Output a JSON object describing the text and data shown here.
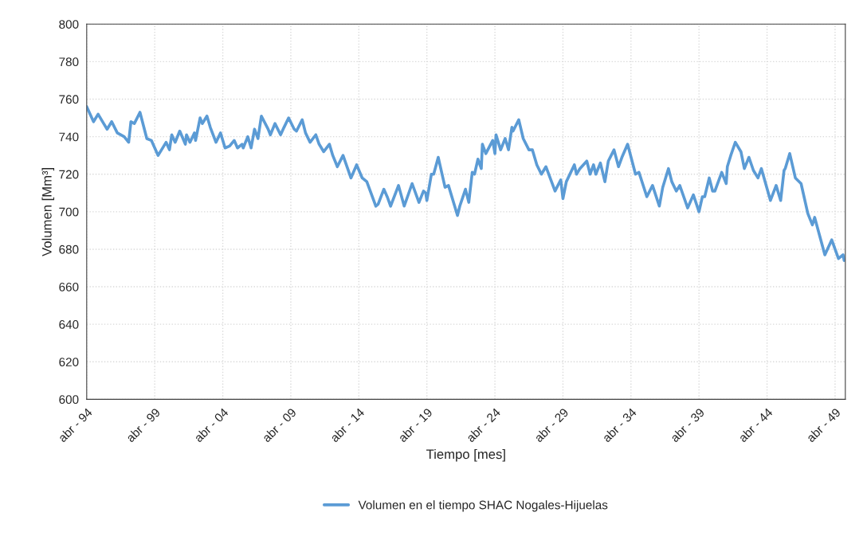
{
  "chart_data": {
    "type": "line",
    "xlabel": "Tiempo [mes]",
    "ylabel": "Volumen [Mm³]",
    "x": [
      "1994-04",
      "1994-10",
      "1995-02",
      "1995-07",
      "1995-10",
      "1996-02",
      "1996-07",
      "1997-01",
      "1997-05",
      "1997-07",
      "1997-10",
      "1998-03",
      "1998-09",
      "1999-01",
      "1999-07",
      "2000-02",
      "2000-05",
      "2000-07",
      "2000-10",
      "2001-02",
      "2001-07",
      "2001-08",
      "2001-11",
      "2002-03",
      "2002-04",
      "2002-08",
      "2002-10",
      "2003-02",
      "2003-05",
      "2003-10",
      "2004-02",
      "2004-06",
      "2004-10",
      "2005-02",
      "2005-05",
      "2005-09",
      "2005-10",
      "2006-02",
      "2006-05",
      "2006-08",
      "2006-11",
      "2007-02",
      "2007-08",
      "2007-10",
      "2008-02",
      "2008-07",
      "2008-10",
      "2009-02",
      "2009-07",
      "2009-09",
      "2010-02",
      "2010-05",
      "2010-09",
      "2011-02",
      "2011-05",
      "2011-09",
      "2012-02",
      "2012-05",
      "2012-09",
      "2013-02",
      "2013-09",
      "2014-02",
      "2014-07",
      "2014-11",
      "2015-07",
      "2015-09",
      "2016-02",
      "2016-05",
      "2016-08",
      "2017-03",
      "2017-08",
      "2018-03",
      "2018-09",
      "2019-01",
      "2019-03",
      "2019-04",
      "2019-08",
      "2019-10",
      "2020-02",
      "2020-08",
      "2020-11",
      "2021-07",
      "2021-09",
      "2022-02",
      "2022-05",
      "2022-08",
      "2022-10",
      "2023-01",
      "2023-04",
      "2023-05",
      "2023-08",
      "2024-02",
      "2024-04",
      "2024-05",
      "2024-09",
      "2025-01",
      "2025-04",
      "2025-07",
      "2025-08",
      "2026-01",
      "2026-05",
      "2026-10",
      "2027-01",
      "2027-05",
      "2027-09",
      "2028-01",
      "2028-09",
      "2029-02",
      "2029-04",
      "2029-07",
      "2030-02",
      "2030-04",
      "2030-07",
      "2031-01",
      "2031-04",
      "2031-07",
      "2031-09",
      "2032-01",
      "2032-05",
      "2032-08",
      "2033-01",
      "2033-05",
      "2033-08",
      "2034-01",
      "2034-08",
      "2034-11",
      "2035-06",
      "2035-11",
      "2036-05",
      "2036-08",
      "2037-01",
      "2037-04",
      "2037-08",
      "2037-11",
      "2038-06",
      "2038-11",
      "2039-04",
      "2039-07",
      "2039-09",
      "2040-01",
      "2040-04",
      "2040-06",
      "2040-12",
      "2041-04",
      "2041-05",
      "2041-08",
      "2041-12",
      "2042-05",
      "2042-08",
      "2042-12",
      "2043-04",
      "2043-08",
      "2043-11",
      "2044-07",
      "2044-12",
      "2045-04",
      "2045-07",
      "2045-08",
      "2045-12",
      "2046-05",
      "2046-10",
      "2047-04",
      "2047-08",
      "2047-10",
      "2048-07",
      "2049-01",
      "2049-04",
      "2049-07",
      "2049-11",
      "2049-12"
    ],
    "series": [
      {
        "name": "Volumen en el tiempo SHAC Nogales-Hijuelas",
        "color": "#5b9bd5",
        "values": [
          756,
          748,
          752,
          747,
          744,
          748,
          742,
          740,
          737,
          748,
          747,
          753,
          739,
          738,
          730,
          737,
          733,
          741,
          737,
          743,
          736,
          741,
          737,
          742,
          738,
          750,
          747,
          751,
          745,
          737,
          742,
          734,
          735,
          738,
          734,
          736,
          734,
          740,
          734,
          744,
          739,
          751,
          744,
          741,
          747,
          741,
          745,
          750,
          744,
          743,
          749,
          742,
          737,
          741,
          736,
          732,
          736,
          730,
          724,
          730,
          718,
          725,
          718,
          716,
          703,
          704,
          712,
          708,
          703,
          714,
          703,
          715,
          705,
          711,
          710,
          706,
          720,
          720,
          729,
          713,
          714,
          698,
          703,
          712,
          705,
          721,
          720,
          728,
          723,
          736,
          731,
          738,
          731,
          741,
          733,
          739,
          733,
          745,
          743,
          749,
          739,
          733,
          733,
          725,
          720,
          724,
          711,
          717,
          707,
          716,
          725,
          720,
          723,
          727,
          720,
          725,
          720,
          726,
          716,
          727,
          733,
          724,
          729,
          736,
          720,
          721,
          708,
          714,
          703,
          713,
          723,
          716,
          711,
          714,
          702,
          709,
          700,
          708,
          708,
          718,
          711,
          711,
          721,
          715,
          724,
          730,
          737,
          732,
          723,
          729,
          722,
          718,
          723,
          706,
          714,
          706,
          722,
          723,
          731,
          718,
          715,
          699,
          693,
          697,
          677,
          685,
          680,
          675,
          677,
          674
        ]
      }
    ],
    "xlim": [
      "1994-04",
      "2050-01"
    ],
    "xticks": [
      {
        "value": "1994-04",
        "label": "abr - 94"
      },
      {
        "value": "1999-04",
        "label": "abr - 99"
      },
      {
        "value": "2004-04",
        "label": "abr - 04"
      },
      {
        "value": "2009-04",
        "label": "abr - 09"
      },
      {
        "value": "2014-04",
        "label": "abr - 14"
      },
      {
        "value": "2019-04",
        "label": "abr - 19"
      },
      {
        "value": "2024-04",
        "label": "abr - 24"
      },
      {
        "value": "2029-04",
        "label": "abr - 29"
      },
      {
        "value": "2034-04",
        "label": "abr - 34"
      },
      {
        "value": "2039-04",
        "label": "abr - 39"
      },
      {
        "value": "2044-04",
        "label": "abr - 44"
      },
      {
        "value": "2049-04",
        "label": "abr - 49"
      }
    ],
    "ylim": [
      600,
      800
    ],
    "yticks": [
      600,
      620,
      640,
      660,
      680,
      700,
      720,
      740,
      760,
      780,
      800
    ],
    "grid": true,
    "legend": "bottom",
    "marker": "none",
    "line_style": "solid"
  }
}
